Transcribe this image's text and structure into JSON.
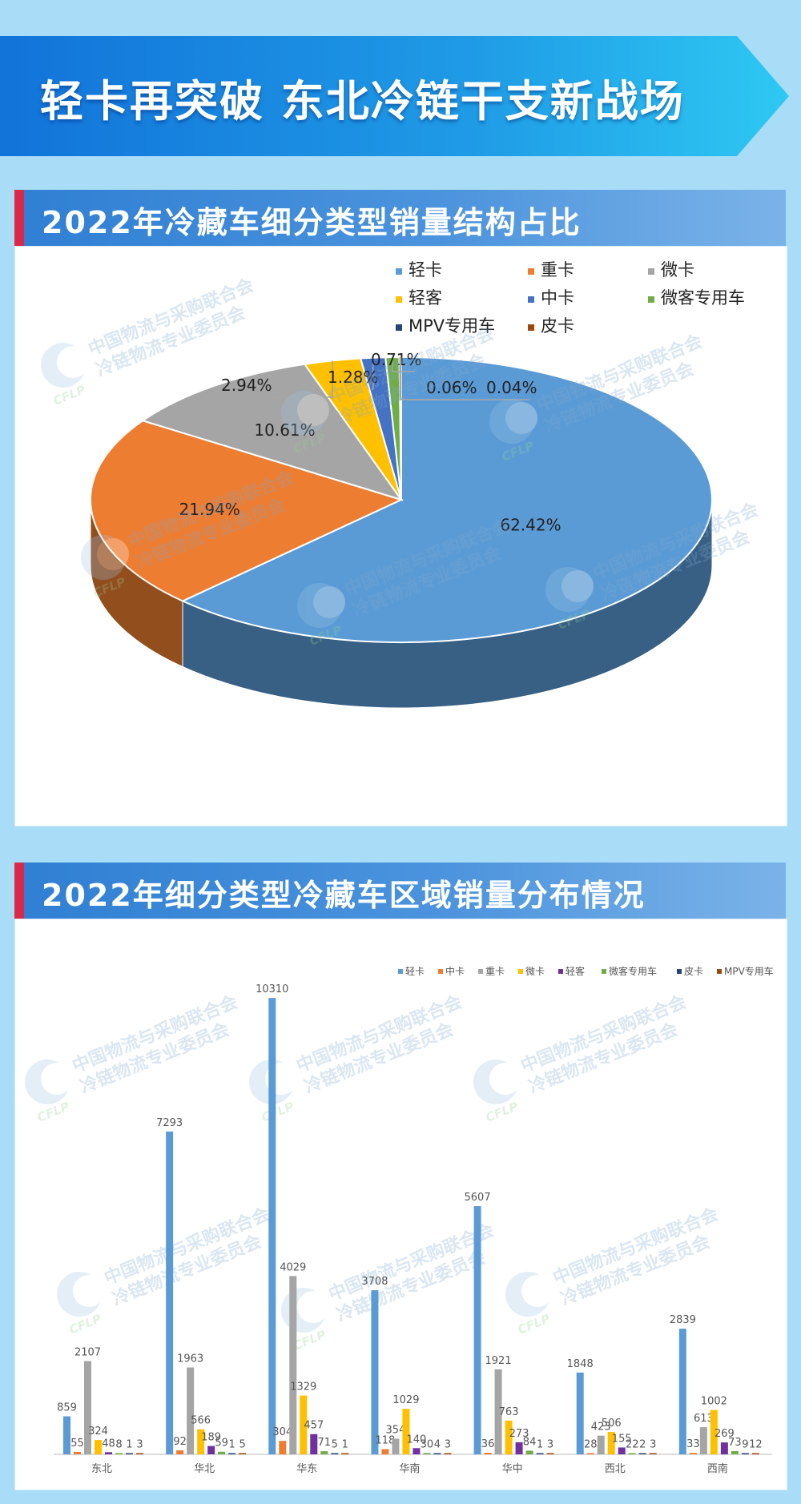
{
  "header": {
    "title": "轻卡再突破 东北冷链干支新战场"
  },
  "section1": {
    "title": "2022年冷藏车细分类型销量结构占比"
  },
  "section2": {
    "title": "2022年细分类型冷藏车区域销量分布情况"
  },
  "watermark": {
    "line1": "中国物流与采购联合会",
    "line2": "冷链物流专业委员会",
    "logo": "CFLP"
  },
  "chart_data": [
    {
      "type": "pie",
      "title": "",
      "legend_position": "top-right",
      "slices": [
        {
          "name": "轻卡",
          "value": 62.42,
          "label": "62.42%",
          "color": "#5b9bd5"
        },
        {
          "name": "重卡",
          "value": 21.94,
          "label": "21.94%",
          "color": "#ed7d31"
        },
        {
          "name": "微卡",
          "value": 10.61,
          "label": "10.61%",
          "color": "#a5a5a5"
        },
        {
          "name": "轻客",
          "value": 2.94,
          "label": "2.94%",
          "color": "#ffc000"
        },
        {
          "name": "中卡",
          "value": 1.28,
          "label": "1.28%",
          "color": "#4472c4"
        },
        {
          "name": "微客专用车",
          "value": 0.71,
          "label": "0.71%",
          "color": "#70ad47"
        },
        {
          "name": "MPV专用车",
          "value": 0.06,
          "label": "0.06%",
          "color": "#264478"
        },
        {
          "name": "皮卡",
          "value": 0.04,
          "label": "0.04%",
          "color": "#9e480e"
        }
      ]
    },
    {
      "type": "bar",
      "title": "",
      "legend_position": "top-right",
      "categories": [
        "东北",
        "华北",
        "华东",
        "华南",
        "华中",
        "西北",
        "西南"
      ],
      "ylim": [
        0,
        11000
      ],
      "grid": false,
      "series": [
        {
          "name": "轻卡",
          "color": "#5b9bd5",
          "values": [
            859,
            7293,
            10310,
            3708,
            5607,
            1848,
            2839
          ]
        },
        {
          "name": "中卡",
          "color": "#ed7d31",
          "values": [
            55,
            92,
            304,
            118,
            36,
            28,
            33
          ]
        },
        {
          "name": "重卡",
          "color": "#a5a5a5",
          "values": [
            2107,
            1963,
            4029,
            354,
            1921,
            423,
            613
          ]
        },
        {
          "name": "微卡",
          "color": "#ffc000",
          "values": [
            324,
            566,
            1329,
            1029,
            763,
            506,
            1002
          ]
        },
        {
          "name": "轻客",
          "color": "#7030a0",
          "values": [
            48,
            189,
            457,
            140,
            273,
            155,
            269
          ]
        },
        {
          "name": "微客专用车",
          "color": "#70ad47",
          "values": [
            8,
            59,
            71,
            30,
            84,
            22,
            73
          ]
        },
        {
          "name": "皮卡",
          "color": "#264478",
          "values": [
            1,
            1,
            5,
            4,
            1,
            2,
            9
          ]
        },
        {
          "name": "MPV专用车",
          "color": "#9e480e",
          "values": [
            3,
            5,
            1,
            3,
            3,
            3,
            12
          ]
        }
      ]
    }
  ]
}
